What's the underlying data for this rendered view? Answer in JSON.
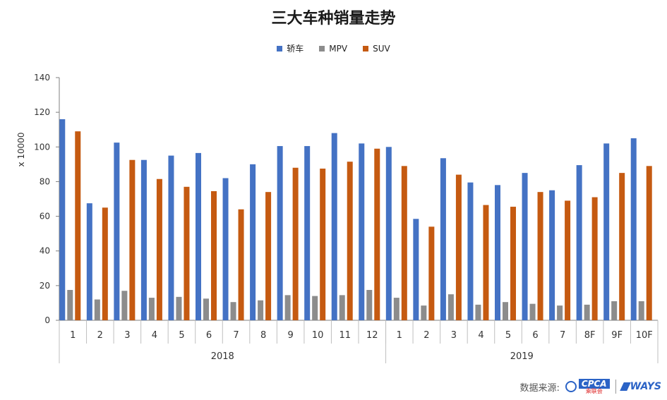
{
  "chart_data": {
    "type": "bar",
    "title": "三大车种销量走势",
    "ylabel": "x 10000",
    "ylim": [
      0,
      140
    ],
    "yticks": [
      0,
      20,
      40,
      60,
      80,
      100,
      120,
      140
    ],
    "grid": false,
    "legend_position": "top",
    "categories": [
      "1",
      "2",
      "3",
      "4",
      "5",
      "6",
      "7",
      "8",
      "9",
      "10",
      "11",
      "12",
      "1",
      "2",
      "3",
      "4",
      "5",
      "6",
      "7",
      "8F",
      "9F",
      "10F"
    ],
    "groups": [
      {
        "label": "2018",
        "count": 12
      },
      {
        "label": "2019",
        "count": 10
      }
    ],
    "series": [
      {
        "name": "轿车",
        "color": "#4472C4",
        "values": [
          116,
          67.5,
          102.5,
          92.5,
          95,
          96.5,
          82,
          90,
          100.5,
          100.5,
          108,
          102,
          100,
          58.5,
          93.5,
          79.5,
          78,
          85,
          75,
          89.5,
          102,
          105
        ]
      },
      {
        "name": "MPV",
        "color": "#8C8C8C",
        "values": [
          17.5,
          12,
          17,
          13,
          13.5,
          12.5,
          10.5,
          11.5,
          14.5,
          14,
          14.5,
          17.5,
          13,
          8.5,
          15,
          9,
          10.5,
          9.5,
          8.5,
          9,
          11,
          11
        ]
      },
      {
        "name": "SUV",
        "color": "#C55A11",
        "values": [
          109,
          65,
          92.5,
          81.5,
          77,
          74.5,
          64,
          74,
          88,
          87.5,
          91.5,
          99,
          89,
          54,
          84,
          66.5,
          65.5,
          74,
          69,
          71,
          85,
          89
        ]
      }
    ]
  },
  "source": {
    "label": "数据来源:",
    "logo_cpca": "CPCA",
    "logo_cpca_sub": "乘联会",
    "logo_ways": "WAYS"
  }
}
